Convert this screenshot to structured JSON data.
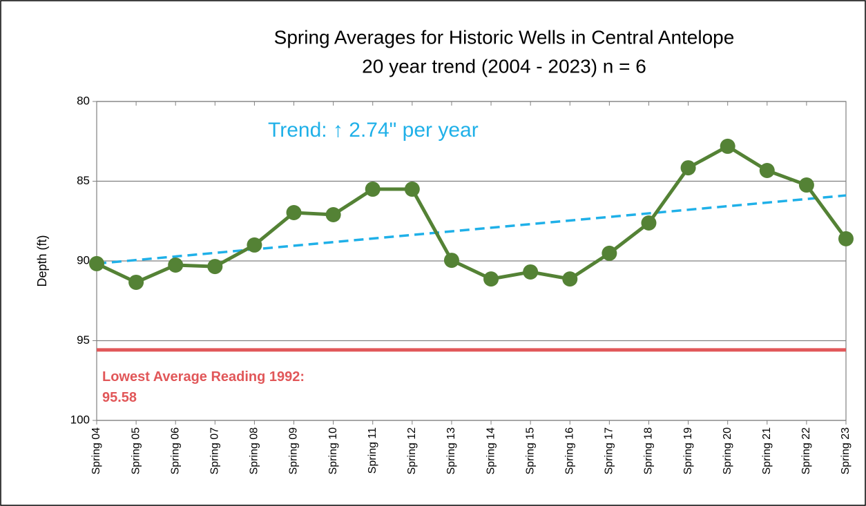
{
  "chart_data": {
    "type": "line",
    "title": "Spring Averages for Historic Wells in Central Antelope",
    "subtitle": "20 year trend (2004 - 2023)  n = 6",
    "y_label": "Depth (ft)",
    "categories": [
      "Spring 04",
      "Spring 05",
      "Spring 06",
      "Spring 07",
      "Spring 08",
      "Spring 09",
      "Spring 10",
      "Spring 11",
      "Spring 12",
      "Spring 13",
      "Spring 14",
      "Spring 15",
      "Spring 16",
      "Spring 17",
      "Spring 18",
      "Spring 19",
      "Spring 20",
      "Spring 21",
      "Spring 22",
      "Spring 23"
    ],
    "series": [
      {
        "name": "Spring Average",
        "color": "#548235",
        "values": [
          90.17,
          91.34,
          90.26,
          90.35,
          89.0,
          86.97,
          87.1,
          85.5,
          85.5,
          89.96,
          91.13,
          90.69,
          91.13,
          89.52,
          87.62,
          84.16,
          82.81,
          84.33,
          85.24,
          88.61
        ]
      }
    ],
    "trend": {
      "label": "Trend: ↑ 2.74\" per year",
      "color": "#1fb0e8",
      "values": [
        90.17,
        85.89
      ]
    },
    "reference_line": {
      "label": "Lowest Average Reading 1992:",
      "value": 95.58,
      "color": "#e15759"
    },
    "ylim": [
      80,
      100
    ],
    "yticks": [
      80,
      85,
      90,
      95,
      100
    ],
    "y_inverted": true,
    "grid": true
  }
}
